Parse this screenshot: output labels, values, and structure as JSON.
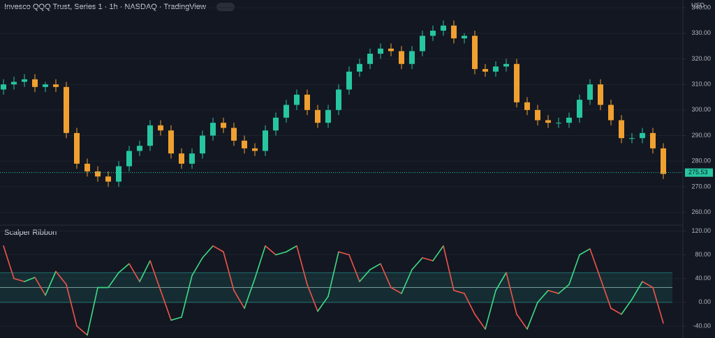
{
  "chart_data": [
    {
      "type": "candlestick",
      "title": "Invesco QQQ Trust, Series 1 · 1h · NASDAQ · TradingView",
      "currency": "USD",
      "up_color": "#26c6a0",
      "down_color": "#f0a030",
      "grid": true,
      "ylim": [
        255,
        343
      ],
      "yticks": [
        {
          "value": 260,
          "label": "260.00"
        },
        {
          "value": 270,
          "label": "270.00"
        },
        {
          "value": 280,
          "label": "280.00"
        },
        {
          "value": 290,
          "label": "290.00"
        },
        {
          "value": 300,
          "label": "300.00"
        },
        {
          "value": 310,
          "label": "310.00"
        },
        {
          "value": 320,
          "label": "320.00"
        },
        {
          "value": 330,
          "label": "330.00"
        },
        {
          "value": 340,
          "label": "340.00"
        }
      ],
      "last_price": 275.53,
      "last_price_label": "275.53",
      "open": [
        308,
        310,
        311,
        312,
        309,
        310,
        309,
        291,
        279,
        276,
        274,
        272,
        278,
        284,
        286,
        294,
        292,
        283,
        279,
        283,
        290,
        295,
        293,
        288,
        285,
        284,
        292,
        297,
        302,
        306,
        300,
        295,
        300,
        308,
        315,
        318,
        322,
        324,
        323,
        318,
        323,
        329,
        331,
        333,
        328,
        329,
        316,
        315,
        317,
        318,
        303,
        300,
        296,
        295,
        295,
        297,
        304,
        310,
        302,
        296,
        289,
        289,
        291,
        285
      ],
      "high": [
        312,
        313,
        314,
        314,
        311,
        312,
        311,
        293,
        281,
        278,
        276,
        280,
        286,
        288,
        296,
        296,
        294,
        285,
        285,
        292,
        297,
        297,
        295,
        290,
        287,
        294,
        299,
        304,
        308,
        308,
        302,
        302,
        310,
        317,
        320,
        324,
        326,
        326,
        325,
        325,
        331,
        333,
        335,
        335,
        330,
        331,
        318,
        319,
        320,
        320,
        305,
        302,
        298,
        297,
        299,
        306,
        312,
        312,
        304,
        298,
        291,
        293,
        293,
        287
      ],
      "low": [
        306,
        308,
        309,
        307,
        307,
        307,
        289,
        277,
        274,
        272,
        270,
        270,
        276,
        282,
        284,
        290,
        281,
        277,
        277,
        281,
        288,
        291,
        286,
        283,
        282,
        282,
        290,
        295,
        300,
        298,
        293,
        293,
        298,
        306,
        313,
        316,
        320,
        321,
        316,
        316,
        321,
        327,
        329,
        326,
        326,
        314,
        313,
        313,
        315,
        301,
        298,
        294,
        293,
        293,
        293,
        295,
        302,
        300,
        294,
        287,
        287,
        287,
        283,
        273
      ],
      "close": [
        310,
        311,
        312,
        309,
        310,
        309,
        291,
        279,
        276,
        274,
        272,
        278,
        284,
        286,
        294,
        292,
        283,
        279,
        283,
        290,
        295,
        293,
        288,
        285,
        284,
        292,
        297,
        302,
        306,
        300,
        295,
        300,
        308,
        315,
        318,
        322,
        324,
        323,
        318,
        323,
        329,
        331,
        333,
        328,
        329,
        316,
        315,
        317,
        318,
        303,
        300,
        296,
        295,
        295,
        297,
        304,
        310,
        302,
        296,
        289,
        289,
        291,
        285,
        275
      ]
    },
    {
      "type": "line",
      "title": "Scalper Ribbon",
      "rise_color": "#3ddc84",
      "fall_color": "#f0554a",
      "band_color": "#26a69a",
      "band": [
        0,
        50
      ],
      "midline": 25,
      "grid": true,
      "ylim": [
        -60,
        130
      ],
      "yticks": [
        {
          "value": -40,
          "label": "-40.00"
        },
        {
          "value": 0,
          "label": "0.00"
        },
        {
          "value": 40,
          "label": "40.00"
        },
        {
          "value": 80,
          "label": "80.00"
        },
        {
          "value": 120,
          "label": "120.00"
        }
      ],
      "values": [
        95,
        40,
        35,
        42,
        12,
        52,
        30,
        -40,
        -55,
        25,
        25,
        50,
        65,
        35,
        70,
        20,
        -30,
        -25,
        45,
        75,
        95,
        85,
        20,
        -10,
        40,
        95,
        80,
        85,
        95,
        30,
        -15,
        10,
        85,
        80,
        35,
        55,
        65,
        25,
        15,
        55,
        75,
        70,
        95,
        20,
        15,
        -20,
        -45,
        20,
        50,
        -20,
        -45,
        0,
        20,
        15,
        30,
        80,
        90,
        40,
        -10,
        -20,
        5,
        35,
        25,
        -35
      ]
    }
  ]
}
